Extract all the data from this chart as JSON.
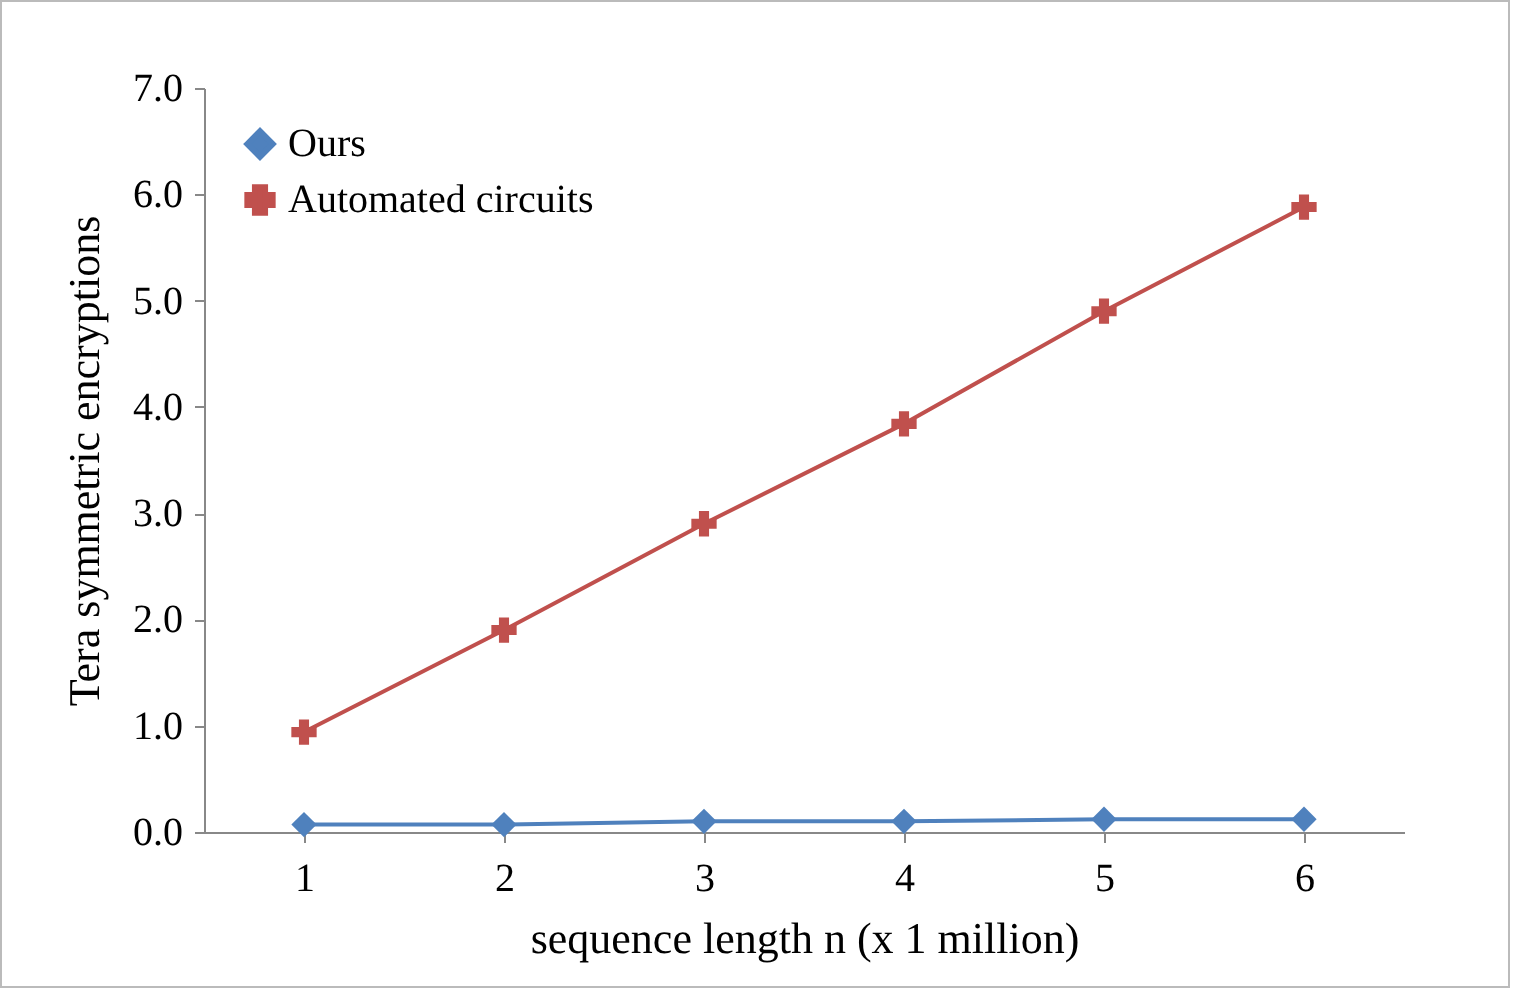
{
  "chart_data": {
    "type": "line",
    "xlabel": "sequence length n (x 1 million)",
    "ylabel": "Tera symmetric encryptions",
    "categories": [
      "1",
      "2",
      "3",
      "4",
      "5",
      "6"
    ],
    "series": [
      {
        "name": "Ours",
        "color": "#4f81bd",
        "marker": "diamond",
        "values": [
          0.07,
          0.07,
          0.1,
          0.1,
          0.12,
          0.12
        ]
      },
      {
        "name": "Automated circuits",
        "color": "#c0504d",
        "marker": "cross",
        "values": [
          0.94,
          1.9,
          2.9,
          3.84,
          4.9,
          5.88
        ]
      }
    ],
    "ylim": [
      0,
      7
    ],
    "yticks": [
      {
        "value": 0,
        "label": "0.0"
      },
      {
        "value": 1,
        "label": "1.0"
      },
      {
        "value": 2,
        "label": "2.0"
      },
      {
        "value": 3,
        "label": "3.0"
      },
      {
        "value": 4,
        "label": "4.0"
      },
      {
        "value": 5,
        "label": "5.0"
      },
      {
        "value": 6,
        "label": "6.0"
      },
      {
        "value": 7,
        "label": "7.0"
      }
    ],
    "grid": false,
    "legend": "top left"
  }
}
